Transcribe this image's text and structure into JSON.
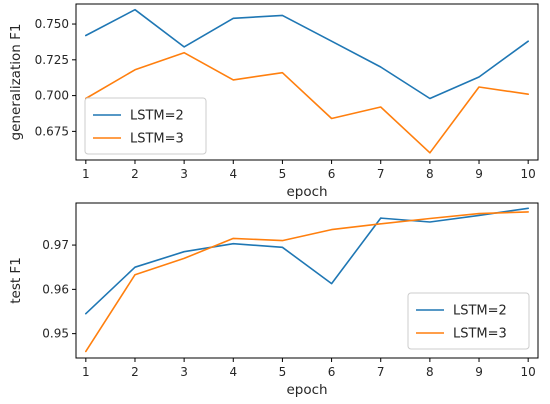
{
  "chart_data": [
    {
      "type": "line",
      "x": [
        1,
        2,
        3,
        4,
        5,
        6,
        7,
        8,
        9,
        10
      ],
      "series": [
        {
          "name": "LSTM=2",
          "values": [
            0.742,
            0.76,
            0.734,
            0.754,
            0.756,
            0.738,
            0.72,
            0.698,
            0.713,
            0.738
          ]
        },
        {
          "name": "LSTM=3",
          "values": [
            0.698,
            0.718,
            0.73,
            0.711,
            0.716,
            0.684,
            0.692,
            0.66,
            0.706,
            0.701
          ]
        }
      ],
      "xlabel": "epoch",
      "ylabel": "generalization F1",
      "xlim": [
        0.8,
        10.2
      ],
      "ylim": [
        0.655,
        0.764
      ],
      "xticks": [
        "1",
        "2",
        "3",
        "4",
        "5",
        "6",
        "7",
        "8",
        "9",
        "10"
      ],
      "yticks": [
        "0.675",
        "0.700",
        "0.725",
        "0.750"
      ],
      "legend": "lower-left",
      "grid": false
    },
    {
      "type": "line",
      "x": [
        1,
        2,
        3,
        4,
        5,
        6,
        7,
        8,
        9,
        10
      ],
      "series": [
        {
          "name": "LSTM=2",
          "values": [
            0.9545,
            0.965,
            0.9685,
            0.9703,
            0.9695,
            0.9613,
            0.9761,
            0.9752,
            0.9767,
            0.9783
          ]
        },
        {
          "name": "LSTM=3",
          "values": [
            0.946,
            0.9633,
            0.967,
            0.9715,
            0.971,
            0.9735,
            0.9748,
            0.976,
            0.9771,
            0.9775
          ]
        }
      ],
      "xlabel": "epoch",
      "ylabel": "test F1",
      "xlim": [
        0.8,
        10.2
      ],
      "ylim": [
        0.9445,
        0.9795
      ],
      "xticks": [
        "1",
        "2",
        "3",
        "4",
        "5",
        "6",
        "7",
        "8",
        "9",
        "10"
      ],
      "yticks": [
        "0.95",
        "0.96",
        "0.97"
      ],
      "legend": "lower-right",
      "grid": false
    }
  ],
  "colors": {
    "LSTM=2": "#1f77b4",
    "LSTM=3": "#ff7f0e"
  }
}
